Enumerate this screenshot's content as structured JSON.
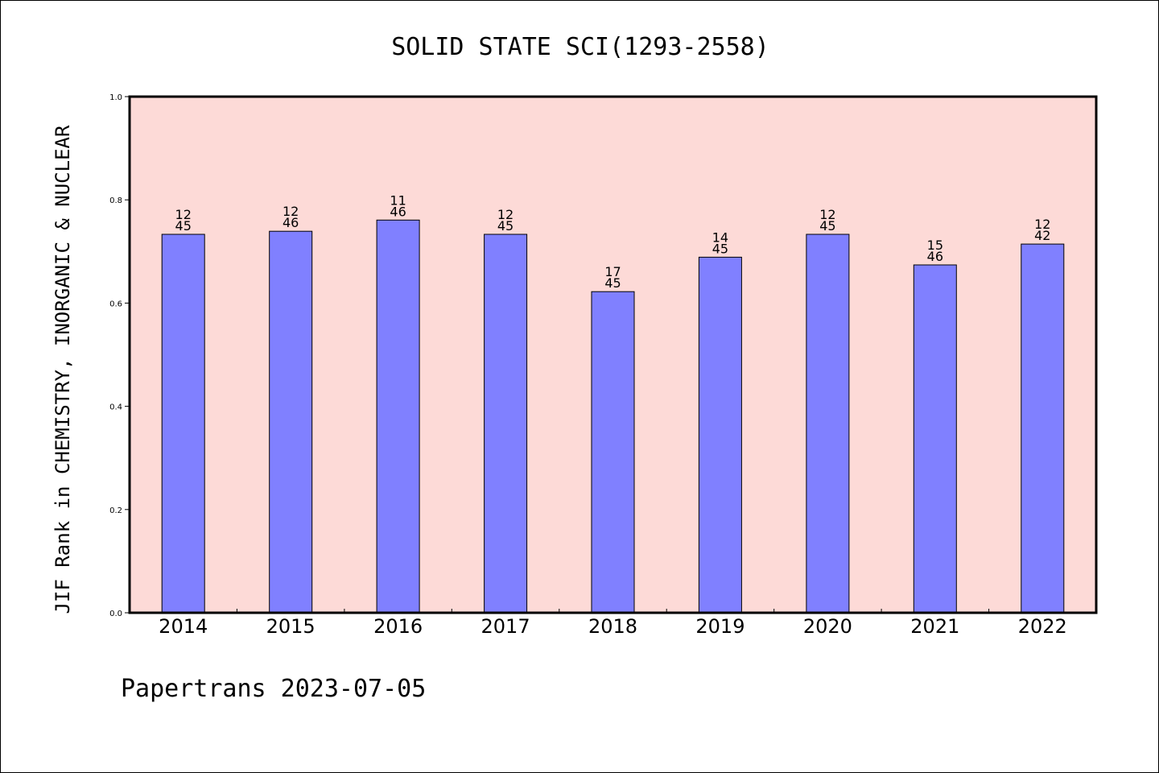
{
  "chart_data": {
    "type": "bar",
    "title": "SOLID STATE SCI(1293-2558)",
    "xlabel": "",
    "ylabel": "JIF Rank in CHEMISTRY, INORGANIC & NUCLEAR",
    "ylim": [
      0,
      1.0
    ],
    "yticks": [
      "0.0",
      "0.2",
      "0.4",
      "0.6",
      "0.8",
      "1.0"
    ],
    "categories": [
      "2014",
      "2015",
      "2016",
      "2017",
      "2018",
      "2019",
      "2020",
      "2021",
      "2022"
    ],
    "values": [
      0.7333,
      0.7391,
      0.7609,
      0.7333,
      0.6222,
      0.6889,
      0.7333,
      0.6739,
      0.7143
    ],
    "rank_labels": [
      {
        "rank": "12",
        "total": "45"
      },
      {
        "rank": "12",
        "total": "46"
      },
      {
        "rank": "11",
        "total": "46"
      },
      {
        "rank": "12",
        "total": "45"
      },
      {
        "rank": "17",
        "total": "45"
      },
      {
        "rank": "14",
        "total": "45"
      },
      {
        "rank": "12",
        "total": "45"
      },
      {
        "rank": "15",
        "total": "46"
      },
      {
        "rank": "12",
        "total": "42"
      }
    ],
    "grid": false,
    "legend": "none",
    "colors": {
      "bar": "#8080ff",
      "plot_background": "#fddad7",
      "axis": "#000000"
    }
  },
  "footer": {
    "text": "Papertrans 2023-07-05"
  }
}
